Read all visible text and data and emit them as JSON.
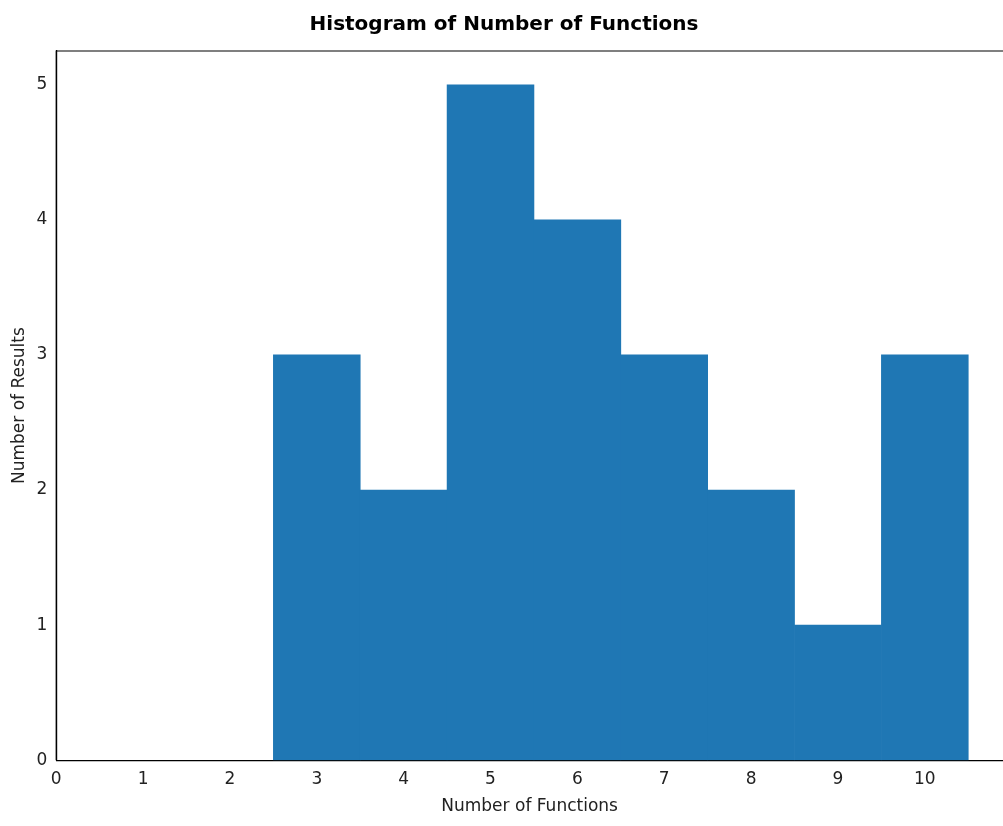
{
  "chart_data": {
    "type": "histogram",
    "title": "Histogram of Number of Functions",
    "xlabel": "Number of Functions",
    "ylabel": "Number of Results",
    "bins": [
      2.5,
      3.5,
      4.5,
      5.5,
      6.5,
      7.5,
      8.5,
      9.5,
      10.5
    ],
    "values": [
      3,
      2,
      5,
      4,
      3,
      2,
      1,
      3
    ],
    "color": "#1f77b4",
    "xlim": [
      0,
      10.9
    ],
    "xticks": [
      0,
      1,
      2,
      3,
      4,
      5,
      6,
      7,
      8,
      9,
      10
    ],
    "ylim": [
      0,
      5.25
    ],
    "yticks": [
      0,
      1,
      2,
      3,
      4,
      5
    ],
    "grid": false,
    "legend": false
  }
}
